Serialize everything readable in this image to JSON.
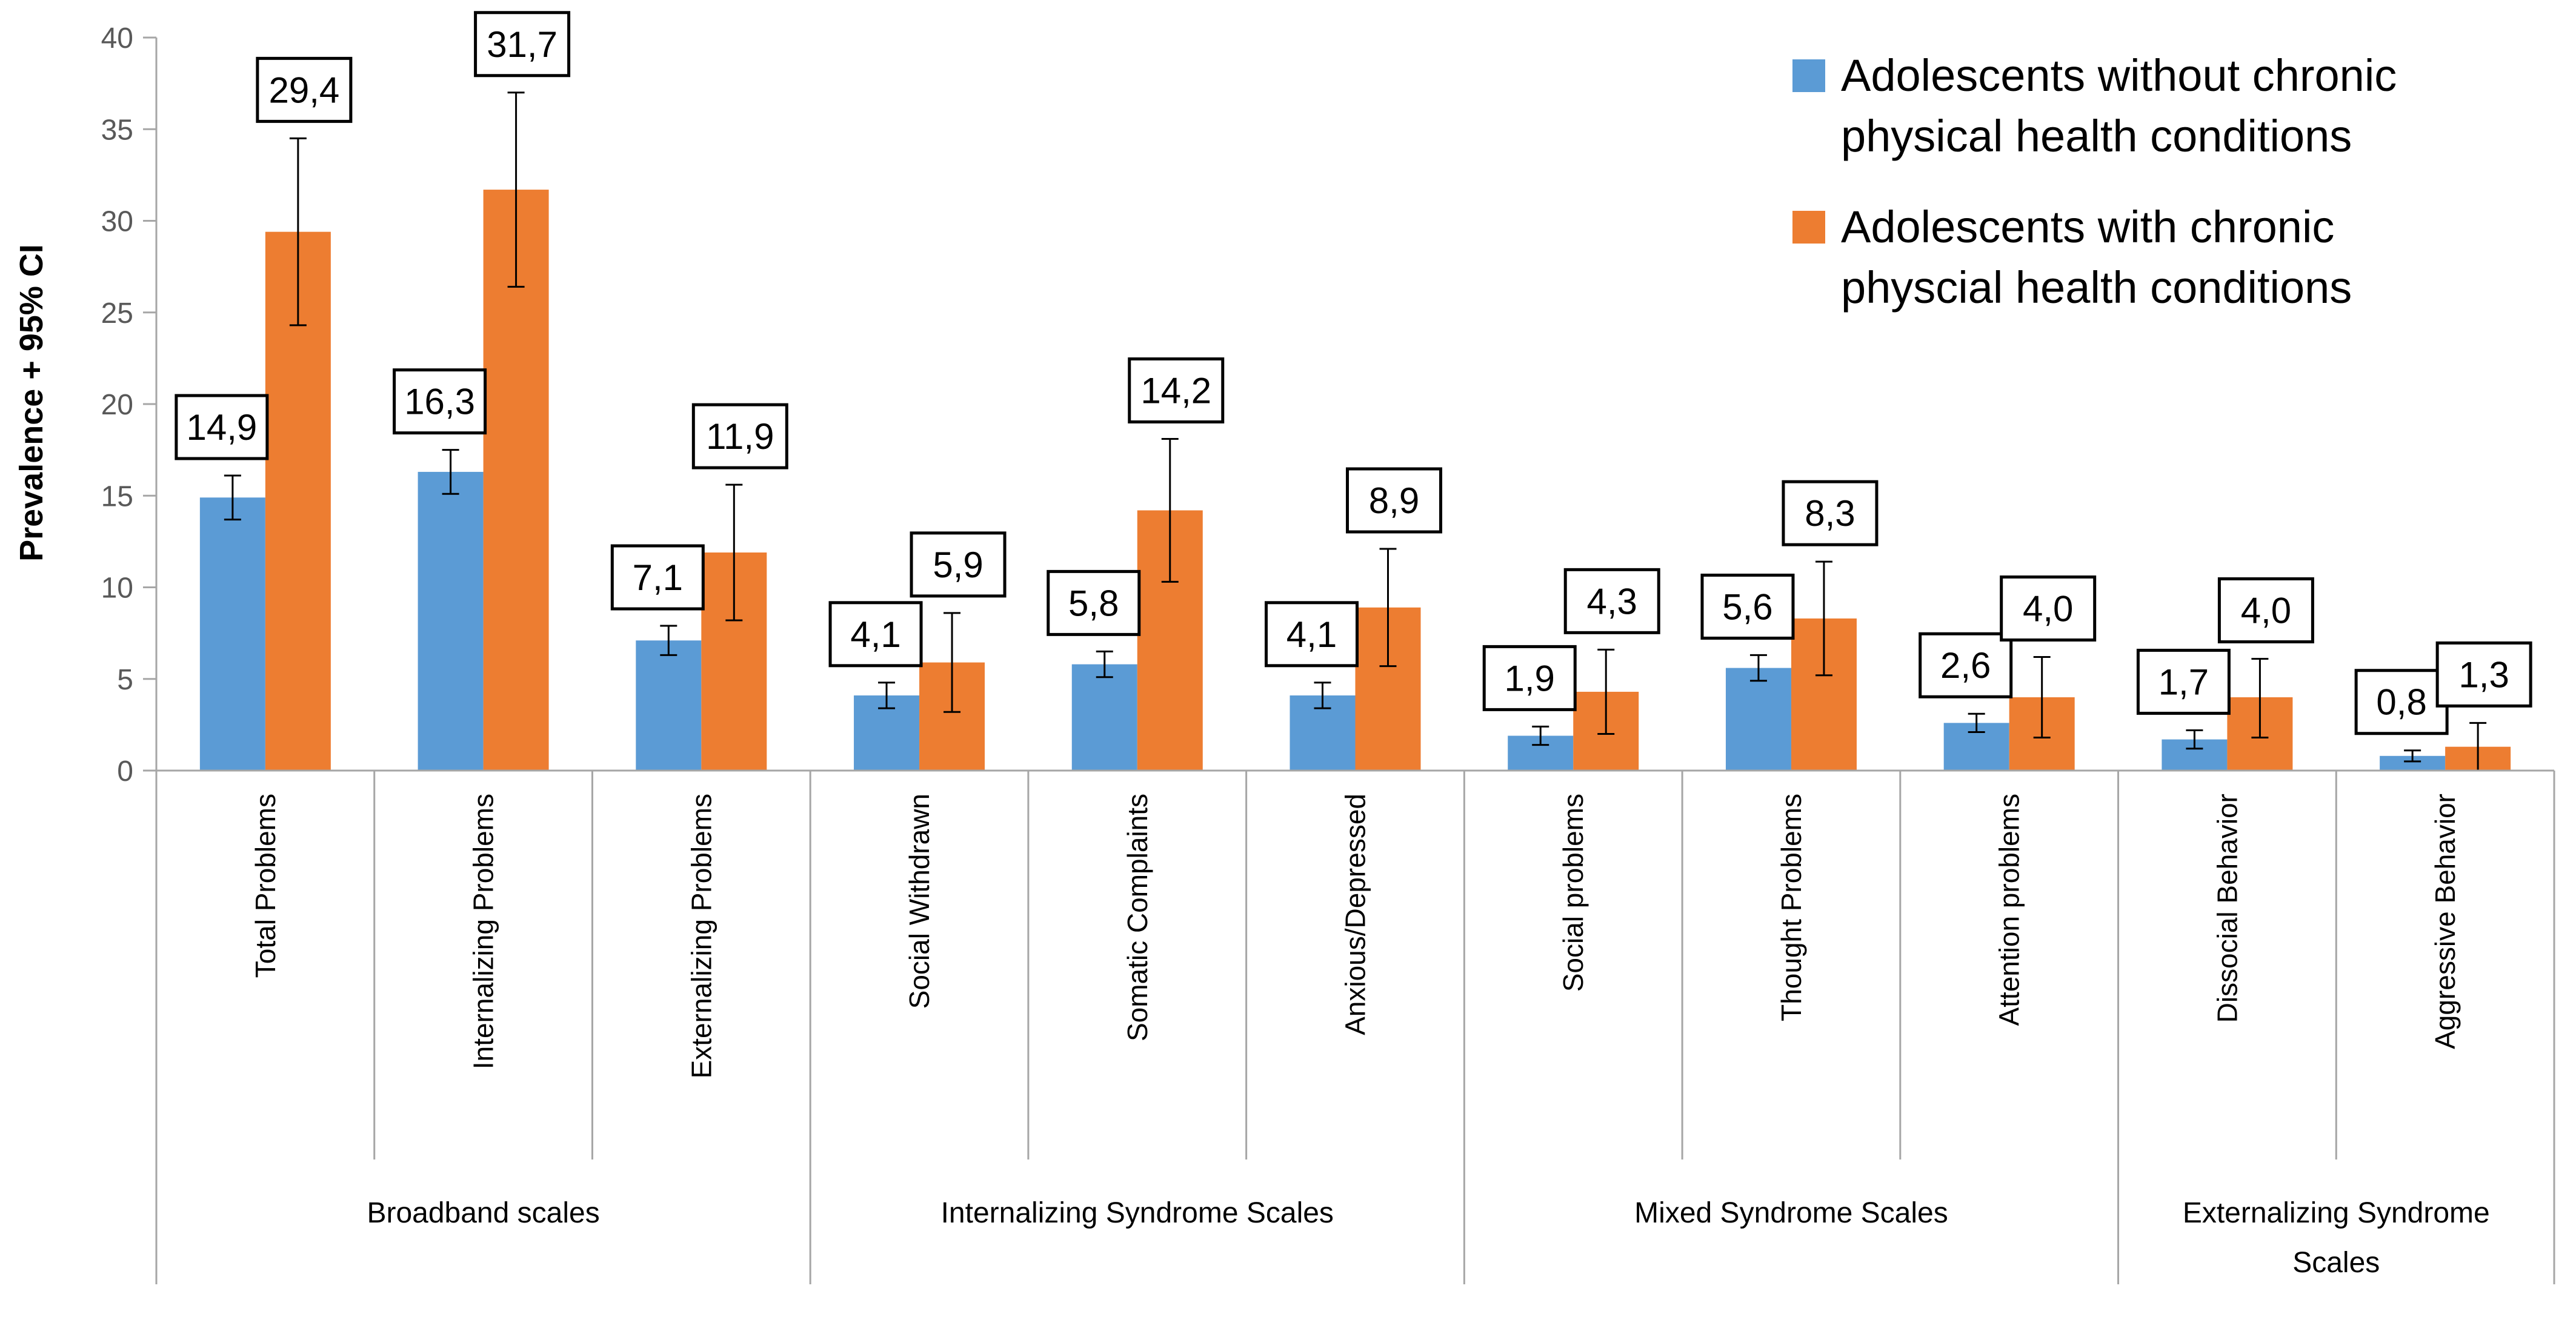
{
  "chart_data": {
    "type": "bar",
    "title": "",
    "ylabel": "Prevalence + 95% CI",
    "xlabel": "",
    "ylim": [
      0,
      40
    ],
    "yticks": [
      0,
      5,
      10,
      15,
      20,
      25,
      30,
      35,
      40
    ],
    "grid": false,
    "legend_position": "top-right",
    "categories": [
      "Total Problems",
      "Internalizing Problems",
      "Externalizing Problems",
      "Social Withdrawn",
      "Somatic Complaints",
      "Anxious/Depressed",
      "Social problems",
      "Thought Problems",
      "Attention problems",
      "Dissocial Behavior",
      "Aggressive Behavior"
    ],
    "groups": [
      {
        "label": "Broadband scales",
        "start": 0,
        "end": 2
      },
      {
        "label": "Internalizing Syndrome Scales",
        "start": 3,
        "end": 5
      },
      {
        "label": "Mixed Syndrome Scales",
        "start": 6,
        "end": 8
      },
      {
        "label": "Externalizing Syndrome Scales",
        "start": 9,
        "end": 10
      }
    ],
    "series": [
      {
        "name": "Adolescents without chronic physical health conditions",
        "legend_lines": [
          "Adolescents without chronic",
          "physical health conditions"
        ],
        "color": "#5b9bd5",
        "values": [
          14.9,
          16.3,
          7.1,
          4.1,
          5.8,
          4.1,
          1.9,
          5.6,
          2.6,
          1.7,
          0.8
        ],
        "labels": [
          "14,9",
          "16,3",
          "7,1",
          "4,1",
          "5,8",
          "4,1",
          "1,9",
          "5,6",
          "2,6",
          "1,7",
          "0,8"
        ],
        "ci_low": [
          13.7,
          15.1,
          6.3,
          3.4,
          5.1,
          3.4,
          1.4,
          4.9,
          2.1,
          1.2,
          0.5
        ],
        "ci_high": [
          16.1,
          17.5,
          7.9,
          4.8,
          6.5,
          4.8,
          2.4,
          6.3,
          3.1,
          2.2,
          1.1
        ]
      },
      {
        "name": "Adolescents with chronic physcial health conditions",
        "legend_lines": [
          "Adolescents with chronic",
          "physcial health conditions"
        ],
        "color": "#ed7d31",
        "values": [
          29.4,
          31.7,
          11.9,
          5.9,
          14.2,
          8.9,
          4.3,
          8.3,
          4.0,
          4.0,
          1.3
        ],
        "labels": [
          "29,4",
          "31,7",
          "11,9",
          "5,9",
          "14,2",
          "8,9",
          "4,3",
          "8,3",
          "4,0",
          "4,0",
          "1,3"
        ],
        "ci_low": [
          24.3,
          26.4,
          8.2,
          3.2,
          10.3,
          5.7,
          2.0,
          5.2,
          1.8,
          1.8,
          0.0
        ],
        "ci_high": [
          34.5,
          37.0,
          15.6,
          8.6,
          18.1,
          12.1,
          6.6,
          11.4,
          6.2,
          6.1,
          2.6
        ]
      }
    ]
  }
}
